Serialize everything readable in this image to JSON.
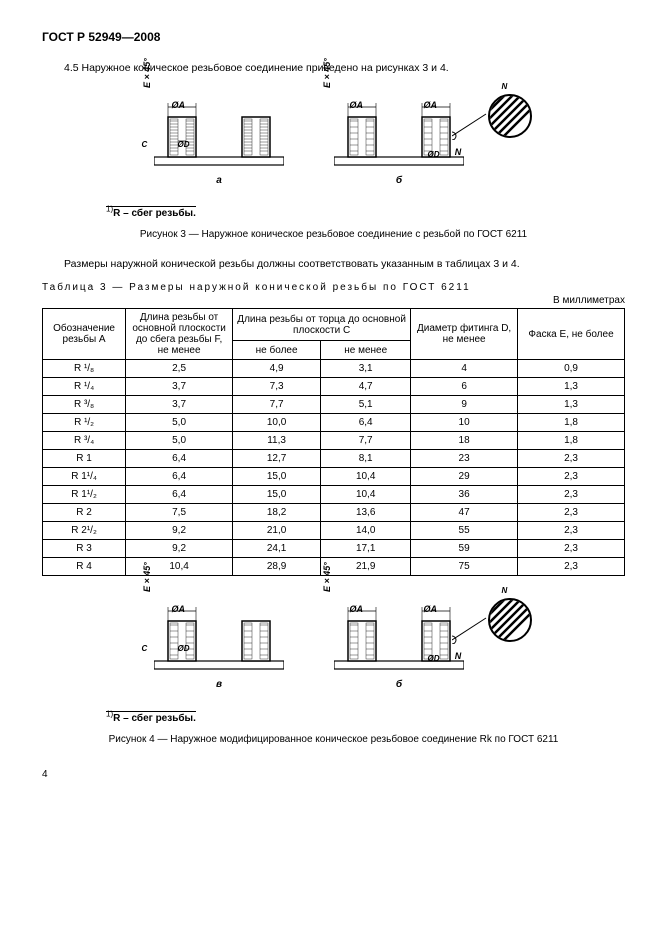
{
  "doc": {
    "header": "ГОСТ Р 52949—2008",
    "section": "4.5 Наружное коническое резьбовое соединение приведено на рисунках 3 и 4.",
    "fig3_note_sup": "1)",
    "fig3_note": "R – сбег резьбы.",
    "fig3_caption": "Рисунок 3 — Наружное коническое резьбовое соединение с резьбой по ГОСТ 6211",
    "mid_paragraph": "Размеры наружной конической резьбы должны соответствовать указанным в таблицах 3 и 4.",
    "table3_caption": "Таблица 3 — Размеры наружной конической резьбы по ГОСТ 6211",
    "units": "В миллиметрах",
    "fig4_note_sup": "1)",
    "fig4_note": "R – сбег резьбы.",
    "fig4_caption": "Рисунок 4 — Наружное модифицированное коническое резьбовое соединение Rk по ГОСТ 6211",
    "page_number": "4"
  },
  "diagram": {
    "dim_E": "E × 45°",
    "dim_A": "ØA",
    "dim_D_inner": "ØD",
    "dim_C": "C",
    "dim_N": "N",
    "sub_a": "а",
    "sub_b": "б",
    "sub_v": "в"
  },
  "table3": {
    "head": {
      "col_a": "Обозначение резьбы A",
      "col_f": "Длина резьбы от основной плоскости до сбега резьбы F, не менее",
      "col_c_group": "Длина резьбы от торца до основной плоскости C",
      "col_c_max": "не более",
      "col_c_min": "не менее",
      "col_d": "Диаметр фитинга D, не менее",
      "col_e": "Фаска E, не более"
    },
    "rows": [
      {
        "a": "R ¹/₈",
        "f": "2,5",
        "cmax": "4,9",
        "cmin": "3,1",
        "d": "4",
        "e": "0,9"
      },
      {
        "a": "R ¹/₄",
        "f": "3,7",
        "cmax": "7,3",
        "cmin": "4,7",
        "d": "6",
        "e": "1,3"
      },
      {
        "a": "R ³/₈",
        "f": "3,7",
        "cmax": "7,7",
        "cmin": "5,1",
        "d": "9",
        "e": "1,3"
      },
      {
        "a": "R ¹/₂",
        "f": "5,0",
        "cmax": "10,0",
        "cmin": "6,4",
        "d": "10",
        "e": "1,8"
      },
      {
        "a": "R ³/₄",
        "f": "5,0",
        "cmax": "11,3",
        "cmin": "7,7",
        "d": "18",
        "e": "1,8"
      },
      {
        "a": "R 1",
        "f": "6,4",
        "cmax": "12,7",
        "cmin": "8,1",
        "d": "23",
        "e": "2,3"
      },
      {
        "a": "R 1¹/₄",
        "f": "6,4",
        "cmax": "15,0",
        "cmin": "10,4",
        "d": "29",
        "e": "2,3"
      },
      {
        "a": "R 1¹/₂",
        "f": "6,4",
        "cmax": "15,0",
        "cmin": "10,4",
        "d": "36",
        "e": "2,3"
      },
      {
        "a": "R 2",
        "f": "7,5",
        "cmax": "18,2",
        "cmin": "13,6",
        "d": "47",
        "e": "2,3"
      },
      {
        "a": "R 2¹/₂",
        "f": "9,2",
        "cmax": "21,0",
        "cmin": "14,0",
        "d": "55",
        "e": "2,3"
      },
      {
        "a": "R 3",
        "f": "9,2",
        "cmax": "24,1",
        "cmin": "17,1",
        "d": "59",
        "e": "2,3"
      },
      {
        "a": "R 4",
        "f": "10,4",
        "cmax": "28,9",
        "cmin": "21,9",
        "d": "75",
        "e": "2,3"
      }
    ]
  }
}
